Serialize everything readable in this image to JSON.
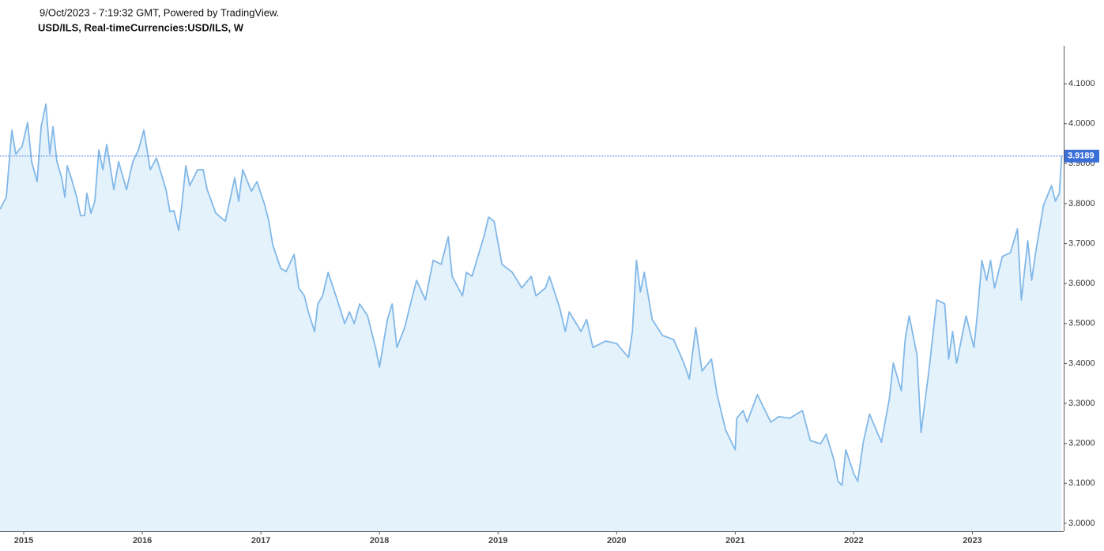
{
  "chart_data": {
    "type": "area",
    "subtitle": "9/Oct/2023 - 7:19:32 GMT, Powered by TradingView.",
    "title": "USD/ILS, Real-timeCurrencies:USD/ILS, W",
    "color": "#82b8e8",
    "fill_color": "#e3f2fb",
    "last_value_color": "#3b6fd8",
    "grid": false,
    "xlim": [
      2014.8,
      2023.77
    ],
    "ylim": [
      2.98,
      4.195
    ],
    "xticks": [
      2015,
      2016,
      2017,
      2018,
      2019,
      2020,
      2021,
      2022,
      2023
    ],
    "yticks": [
      {
        "value": 3.0,
        "label": "3.0000"
      },
      {
        "value": 3.1,
        "label": "3.1000"
      },
      {
        "value": 3.2,
        "label": "3.2000"
      },
      {
        "value": 3.3,
        "label": "3.3000"
      },
      {
        "value": 3.4,
        "label": "3.4000"
      },
      {
        "value": 3.5,
        "label": "3.5000"
      },
      {
        "value": 3.6,
        "label": "3.6000"
      },
      {
        "value": 3.7,
        "label": "3.7000"
      },
      {
        "value": 3.8,
        "label": "3.8000"
      },
      {
        "value": 3.9,
        "label": "3.9000"
      },
      {
        "value": 4.0,
        "label": "4.0000"
      },
      {
        "value": 4.1,
        "label": "4.1000"
      }
    ],
    "x": [
      2014.8,
      2014.853,
      2014.9,
      2014.933,
      2014.987,
      2015.033,
      2015.067,
      2015.113,
      2015.147,
      2015.187,
      2015.22,
      2015.247,
      2015.28,
      2015.32,
      2015.347,
      2015.367,
      2015.4,
      2015.447,
      2015.48,
      2015.513,
      2015.533,
      2015.567,
      2015.6,
      2015.633,
      2015.667,
      2015.7,
      2015.76,
      2015.8,
      2015.867,
      2015.92,
      2015.967,
      2016.013,
      2016.067,
      2016.12,
      2016.2,
      2016.233,
      2016.267,
      2016.307,
      2016.333,
      2016.367,
      2016.4,
      2016.467,
      2016.513,
      2016.547,
      2016.62,
      2016.7,
      2016.78,
      2016.813,
      2016.847,
      2016.92,
      2016.967,
      2017.033,
      2017.067,
      2017.1,
      2017.167,
      2017.213,
      2017.28,
      2017.32,
      2017.367,
      2017.4,
      2017.453,
      2017.48,
      2017.52,
      2017.567,
      2017.633,
      2017.707,
      2017.747,
      2017.787,
      2017.833,
      2017.9,
      2017.967,
      2018.0,
      2018.067,
      2018.107,
      2018.147,
      2018.213,
      2018.253,
      2018.313,
      2018.387,
      2018.453,
      2018.52,
      2018.58,
      2018.613,
      2018.7,
      2018.733,
      2018.78,
      2018.88,
      2018.92,
      2018.967,
      2019.033,
      2019.12,
      2019.2,
      2019.28,
      2019.32,
      2019.4,
      2019.433,
      2019.52,
      2019.567,
      2019.6,
      2019.7,
      2019.747,
      2019.8,
      2019.907,
      2020.0,
      2020.1,
      2020.133,
      2020.167,
      2020.2,
      2020.233,
      2020.3,
      2020.387,
      2020.48,
      2020.567,
      2020.613,
      2020.667,
      2020.72,
      2020.8,
      2020.847,
      2020.92,
      2021.0,
      2021.013,
      2021.067,
      2021.1,
      2021.187,
      2021.3,
      2021.367,
      2021.46,
      2021.567,
      2021.633,
      2021.72,
      2021.767,
      2021.833,
      2021.867,
      2021.9,
      2021.933,
      2022.0,
      2022.033,
      2022.08,
      2022.133,
      2022.233,
      2022.3,
      2022.333,
      2022.4,
      2022.433,
      2022.467,
      2022.533,
      2022.567,
      2022.633,
      2022.7,
      2022.767,
      2022.8,
      2022.833,
      2022.867,
      2022.947,
      2023.013,
      2023.047,
      2023.08,
      2023.12,
      2023.153,
      2023.187,
      2023.253,
      2023.32,
      2023.38,
      2023.413,
      2023.467,
      2023.5,
      2023.533,
      2023.6,
      2023.667,
      2023.7,
      2023.733,
      2023.753
    ],
    "values": [
      3.786,
      3.816,
      3.984,
      3.924,
      3.944,
      4.003,
      3.905,
      3.855,
      3.993,
      4.049,
      3.924,
      3.993,
      3.905,
      3.865,
      3.816,
      3.895,
      3.865,
      3.816,
      3.77,
      3.77,
      3.826,
      3.776,
      3.806,
      3.934,
      3.885,
      3.948,
      3.835,
      3.905,
      3.835,
      3.905,
      3.934,
      3.984,
      3.885,
      3.914,
      3.835,
      3.78,
      3.782,
      3.733,
      3.796,
      3.895,
      3.845,
      3.885,
      3.885,
      3.835,
      3.776,
      3.756,
      3.865,
      3.806,
      3.885,
      3.831,
      3.855,
      3.796,
      3.756,
      3.697,
      3.638,
      3.63,
      3.673,
      3.589,
      3.569,
      3.529,
      3.48,
      3.549,
      3.569,
      3.628,
      3.569,
      3.5,
      3.529,
      3.5,
      3.549,
      3.519,
      3.44,
      3.391,
      3.51,
      3.549,
      3.44,
      3.49,
      3.539,
      3.608,
      3.559,
      3.658,
      3.648,
      3.717,
      3.618,
      3.569,
      3.628,
      3.618,
      3.717,
      3.766,
      3.756,
      3.648,
      3.628,
      3.589,
      3.618,
      3.569,
      3.589,
      3.618,
      3.539,
      3.48,
      3.529,
      3.48,
      3.51,
      3.44,
      3.456,
      3.45,
      3.415,
      3.48,
      3.658,
      3.579,
      3.628,
      3.51,
      3.47,
      3.46,
      3.401,
      3.361,
      3.49,
      3.381,
      3.411,
      3.322,
      3.233,
      3.184,
      3.263,
      3.282,
      3.253,
      3.322,
      3.253,
      3.267,
      3.263,
      3.282,
      3.207,
      3.199,
      3.223,
      3.158,
      3.105,
      3.095,
      3.184,
      3.124,
      3.105,
      3.203,
      3.273,
      3.203,
      3.312,
      3.401,
      3.332,
      3.46,
      3.519,
      3.421,
      3.227,
      3.381,
      3.559,
      3.549,
      3.411,
      3.48,
      3.401,
      3.519,
      3.44,
      3.539,
      3.658,
      3.608,
      3.658,
      3.589,
      3.668,
      3.677,
      3.737,
      3.559,
      3.707,
      3.608,
      3.677,
      3.796,
      3.845,
      3.806,
      3.826,
      3.9189
    ]
  }
}
